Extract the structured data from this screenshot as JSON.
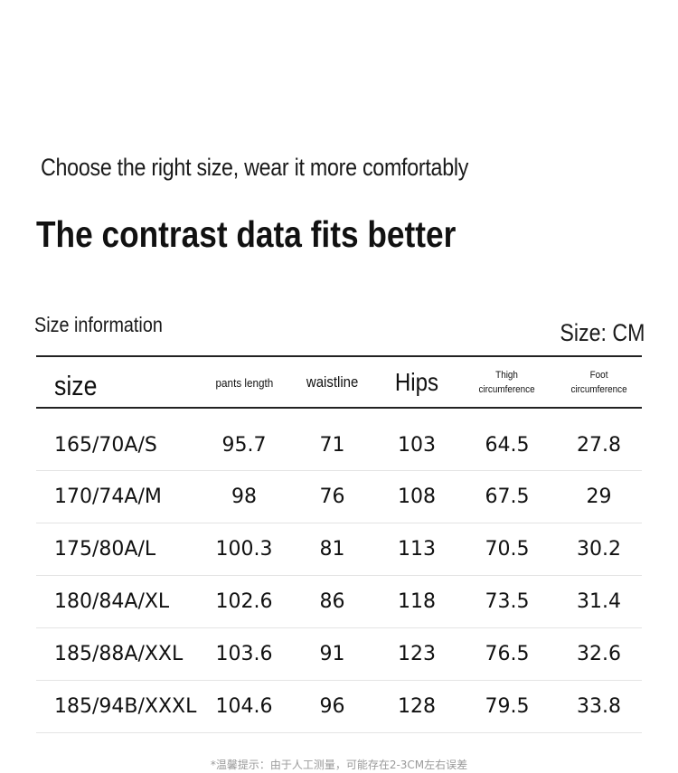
{
  "subtitle": "Choose the right size, wear it more comfortably",
  "headline": "The contrast data fits better",
  "size_info_label": "Size information",
  "unit_label": "Size: CM",
  "table": {
    "headers": [
      "size",
      "pants length",
      "waistline",
      "Hips",
      "Thigh\ncircumference",
      "Foot\ncircumference"
    ],
    "rows": [
      [
        "165/70A/S",
        "95.7",
        "71",
        "103",
        "64.5",
        "27.8"
      ],
      [
        "170/74A/M",
        "98",
        "76",
        "108",
        "67.5",
        "29"
      ],
      [
        "175/80A/L",
        "100.3",
        "81",
        "113",
        "70.5",
        "30.2"
      ],
      [
        "180/84A/XL",
        "102.6",
        "86",
        "118",
        "73.5",
        "31.4"
      ],
      [
        "185/88A/XXL",
        "103.6",
        "91",
        "123",
        "76.5",
        "32.6"
      ],
      [
        "185/94B/XXXL",
        "104.6",
        "96",
        "128",
        "79.5",
        "33.8"
      ]
    ]
  },
  "footnote": "*温馨提示：由于人工测量，可能存在2-3CM左右误差"
}
